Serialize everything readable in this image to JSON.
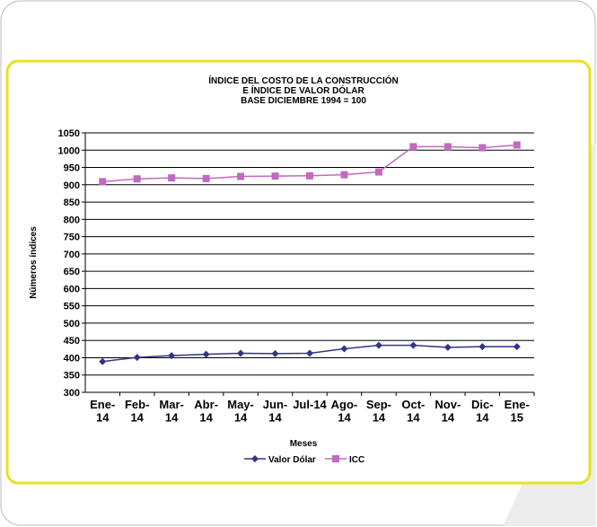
{
  "chart_data": {
    "type": "line",
    "title": [
      "ÍNDICE DEL COSTO DE LA CONSTRUCCIÓN",
      "E ÍNDICE DE VALOR DÓLAR",
      "BASE DICIEMBRE 1994 = 100"
    ],
    "y_label": "Números índices",
    "x_label": "Meses",
    "categories": [
      "Ene-\n14",
      "Feb-\n14",
      "Mar-\n14",
      "Abr-\n14",
      "May-\n14",
      "Jun-\n14",
      "Jul-14",
      "Ago-\n14",
      "Sep-\n14",
      "Oct-\n14",
      "Nov-\n14",
      "Dic-\n14",
      "Ene-\n15"
    ],
    "series": [
      {
        "name": "Valor Dólar",
        "color": "#333388",
        "marker": "diamond",
        "values": [
          389,
          401,
          406,
          410,
          413,
          412,
          413,
          426,
          436,
          436,
          430,
          432,
          432
        ]
      },
      {
        "name": "ICC",
        "color": "#c06ac0",
        "marker": "square",
        "values": [
          909,
          917,
          920,
          918,
          924,
          925,
          926,
          929,
          937,
          1010,
          1010,
          1007,
          1015
        ]
      }
    ],
    "ylim": [
      300,
      1050
    ],
    "yticks": [
      300,
      350,
      400,
      450,
      500,
      550,
      600,
      650,
      700,
      750,
      800,
      850,
      900,
      950,
      1000,
      1050
    ],
    "grid": true
  }
}
